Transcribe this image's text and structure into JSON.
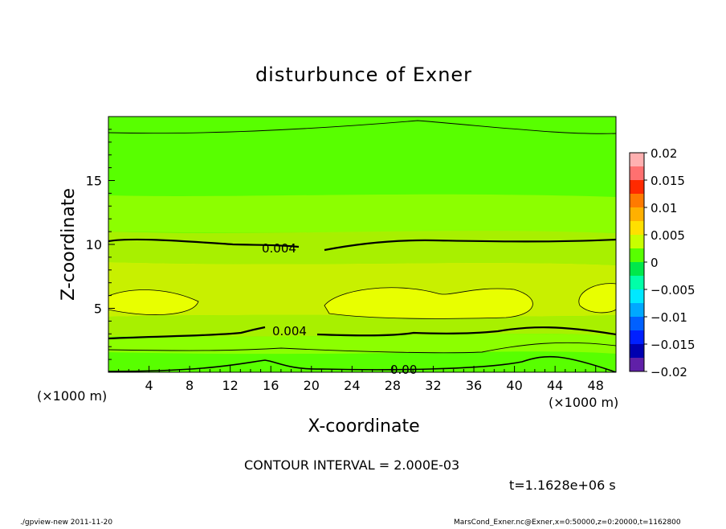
{
  "chart_data": {
    "type": "contour",
    "title": "disturbunce of Exner",
    "xlabel": "X-coordinate",
    "ylabel": "Z-coordinate",
    "x_unit": "(×1000 m)",
    "y_unit": "(×1000 m)",
    "xlim": [
      0,
      50
    ],
    "ylim": [
      0,
      20
    ],
    "x_ticks": [
      "4",
      "8",
      "12",
      "16",
      "20",
      "24",
      "28",
      "32",
      "36",
      "40",
      "44",
      "48"
    ],
    "y_ticks": [
      "5",
      "10",
      "15"
    ],
    "contour_interval_text": "CONTOUR INTERVAL = 2.000E-03",
    "time_text": "t=1.1628e+06 s",
    "contour_labels": [
      {
        "text": "0.004",
        "x": 17,
        "z": 9.6
      },
      {
        "text": "0.004",
        "x": 18,
        "z": 3.1
      },
      {
        "text": "0.00",
        "x": 29,
        "z": 0.1
      }
    ],
    "colorbar": {
      "ticks": [
        "0.02",
        "0.015",
        "0.01",
        "0.005",
        "0",
        "−0.005",
        "−0.01",
        "−0.015",
        "−0.02"
      ],
      "levels": [
        {
          "color": "#ffb0b0"
        },
        {
          "color": "#ff7070"
        },
        {
          "color": "#ff2a00"
        },
        {
          "color": "#ff7a00"
        },
        {
          "color": "#ffb000"
        },
        {
          "color": "#ffe000"
        },
        {
          "color": "#c8ff00"
        },
        {
          "color": "#58ff00"
        },
        {
          "color": "#00e84a"
        },
        {
          "color": "#00ffa8"
        },
        {
          "color": "#00e8ff"
        },
        {
          "color": "#00a8ff"
        },
        {
          "color": "#0060ff"
        },
        {
          "color": "#0020ff"
        },
        {
          "color": "#0000b0"
        },
        {
          "color": "#6020a8"
        }
      ]
    },
    "grid": false
  },
  "footer": {
    "left": "./gpview-new  2011-11-20",
    "right": "MarsCond_Exner.nc@Exner,x=0:50000,z=0:20000,t=1162800"
  }
}
